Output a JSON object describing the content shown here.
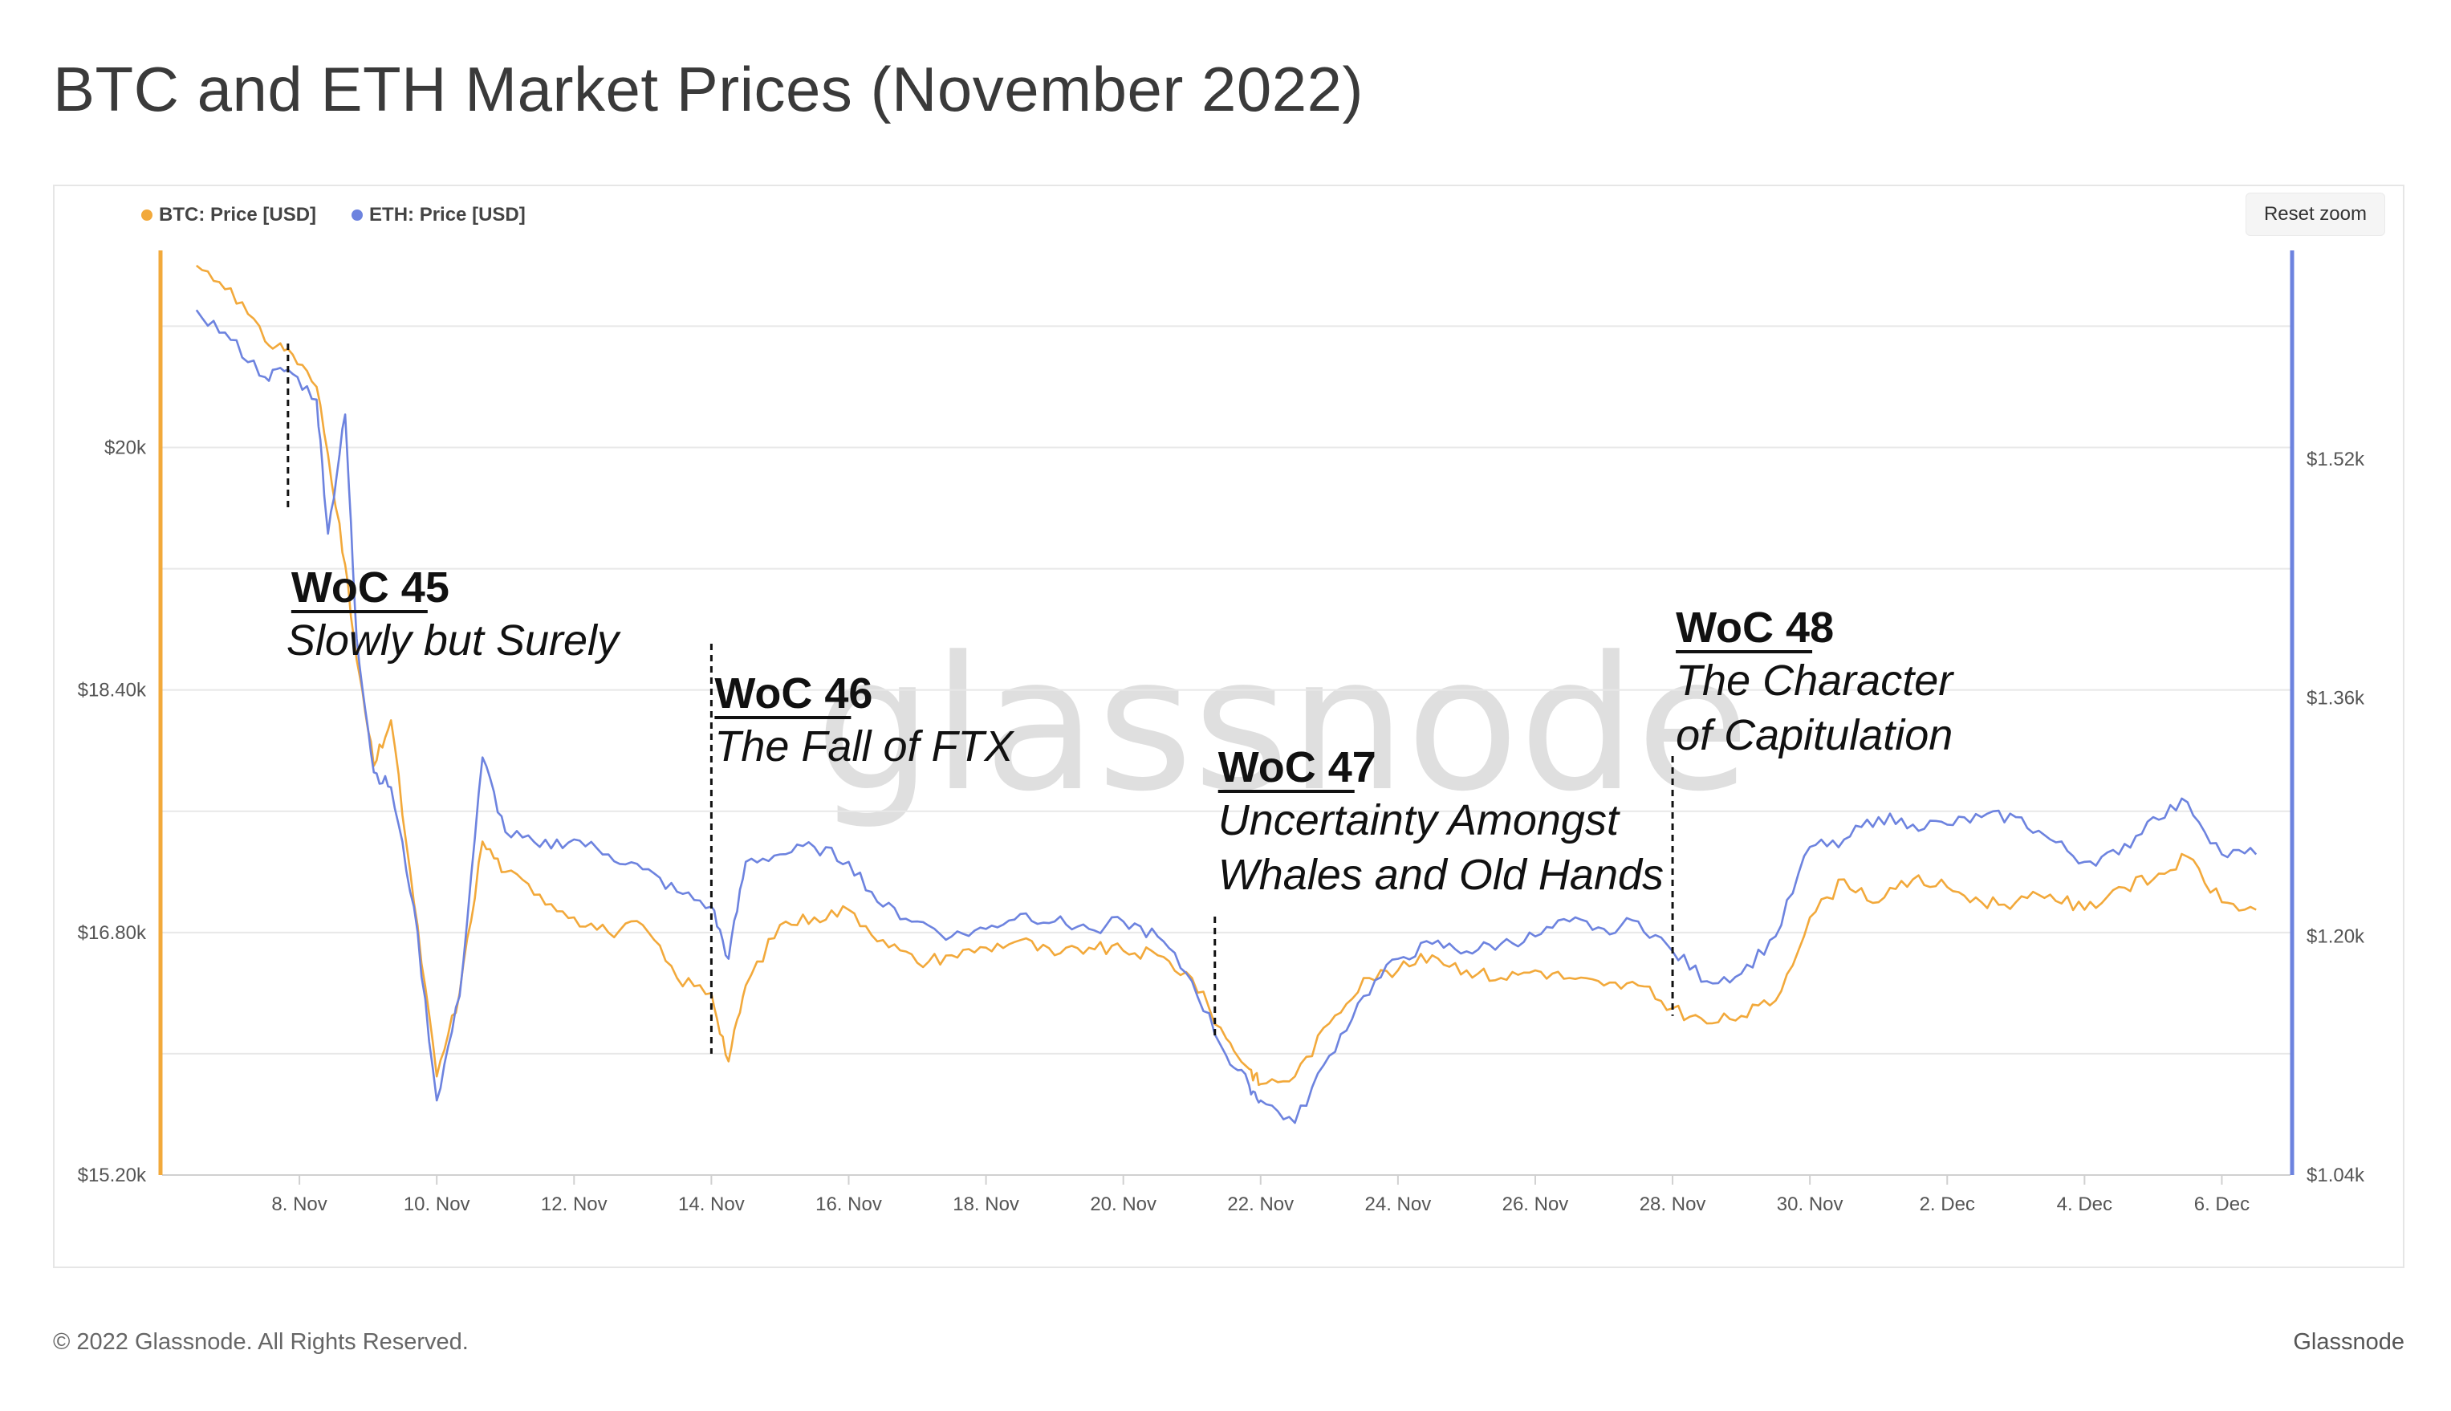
{
  "title": "BTC and ETH Market Prices (November 2022)",
  "reset_zoom_label": "Reset zoom",
  "footer": {
    "copyright": "© 2022 Glassnode. All Rights Reserved.",
    "brand": "Glassnode"
  },
  "watermark": "glassnode",
  "colors": {
    "btc": "#f2a93b",
    "eth": "#6d83df",
    "grid": "#e8e8e8",
    "axis_left": "#f2a93b",
    "axis_right": "#6d83df"
  },
  "chart_data": {
    "type": "line",
    "x_domain": [
      "2022-11-06",
      "2022-12-07"
    ],
    "grid": true,
    "legend": "top-left",
    "x_ticks": [
      {
        "date": "2022-11-08",
        "label": "8. Nov"
      },
      {
        "date": "2022-11-10",
        "label": "10. Nov"
      },
      {
        "date": "2022-11-12",
        "label": "12. Nov"
      },
      {
        "date": "2022-11-14",
        "label": "14. Nov"
      },
      {
        "date": "2022-11-16",
        "label": "16. Nov"
      },
      {
        "date": "2022-11-18",
        "label": "18. Nov"
      },
      {
        "date": "2022-11-20",
        "label": "20. Nov"
      },
      {
        "date": "2022-11-22",
        "label": "22. Nov"
      },
      {
        "date": "2022-11-24",
        "label": "24. Nov"
      },
      {
        "date": "2022-11-26",
        "label": "26. Nov"
      },
      {
        "date": "2022-11-28",
        "label": "28. Nov"
      },
      {
        "date": "2022-11-30",
        "label": "30. Nov"
      },
      {
        "date": "2022-12-02",
        "label": "2. Dec"
      },
      {
        "date": "2022-12-04",
        "label": "4. Dec"
      },
      {
        "date": "2022-12-06",
        "label": "6. Dec"
      }
    ],
    "y_left": {
      "range": [
        15200,
        21300
      ],
      "ticks": [
        {
          "value": 15200,
          "label": "$15.20k"
        },
        {
          "value": 16800,
          "label": "$16.80k"
        },
        {
          "value": 18400,
          "label": "$18.40k"
        },
        {
          "value": 20000,
          "label": "$20k"
        }
      ]
    },
    "y_right": {
      "range": [
        1040,
        1660
      ],
      "ticks": [
        {
          "value": 1040,
          "label": "$1.04k"
        },
        {
          "value": 1200,
          "label": "$1.20k"
        },
        {
          "value": 1360,
          "label": "$1.36k"
        },
        {
          "value": 1520,
          "label": "$1.52k"
        }
      ]
    },
    "series": [
      {
        "name": "BTC: Price [USD]",
        "axis": "left",
        "color": "#f2a93b",
        "points": [
          [
            "2022-11-06 12:00",
            21200
          ],
          [
            "2022-11-07 00:00",
            21050
          ],
          [
            "2022-11-07 12:00",
            20700
          ],
          [
            "2022-11-07 20:00",
            20650
          ],
          [
            "2022-11-08 06:00",
            20400
          ],
          [
            "2022-11-08 14:00",
            19500
          ],
          [
            "2022-11-08 20:00",
            18600
          ],
          [
            "2022-11-09 02:00",
            17900
          ],
          [
            "2022-11-09 08:00",
            18200
          ],
          [
            "2022-11-09 16:00",
            17000
          ],
          [
            "2022-11-10 00:00",
            15850
          ],
          [
            "2022-11-10 08:00",
            16400
          ],
          [
            "2022-11-10 16:00",
            17400
          ],
          [
            "2022-11-11 00:00",
            17200
          ],
          [
            "2022-11-11 12:00",
            17050
          ],
          [
            "2022-11-12 00:00",
            16900
          ],
          [
            "2022-11-12 12:00",
            16800
          ],
          [
            "2022-11-13 00:00",
            16850
          ],
          [
            "2022-11-13 12:00",
            16500
          ],
          [
            "2022-11-14 00:00",
            16400
          ],
          [
            "2022-11-14 06:00",
            15950
          ],
          [
            "2022-11-14 12:00",
            16450
          ],
          [
            "2022-11-15 00:00",
            16850
          ],
          [
            "2022-11-15 12:00",
            16900
          ],
          [
            "2022-11-16 00:00",
            16950
          ],
          [
            "2022-11-16 12:00",
            16750
          ],
          [
            "2022-11-17 00:00",
            16600
          ],
          [
            "2022-11-17 12:00",
            16650
          ],
          [
            "2022-11-18 00:00",
            16700
          ],
          [
            "2022-11-18 12:00",
            16750
          ],
          [
            "2022-11-19 00:00",
            16650
          ],
          [
            "2022-11-19 12:00",
            16700
          ],
          [
            "2022-11-20 00:00",
            16680
          ],
          [
            "2022-11-20 12:00",
            16650
          ],
          [
            "2022-11-21 00:00",
            16500
          ],
          [
            "2022-11-21 12:00",
            16100
          ],
          [
            "2022-11-21 20:00",
            15900
          ],
          [
            "2022-11-22 00:00",
            15800
          ],
          [
            "2022-11-22 12:00",
            15850
          ],
          [
            "2022-11-23 00:00",
            16200
          ],
          [
            "2022-11-23 12:00",
            16500
          ],
          [
            "2022-11-24 00:00",
            16550
          ],
          [
            "2022-11-24 12:00",
            16650
          ],
          [
            "2022-11-25 00:00",
            16550
          ],
          [
            "2022-11-25 12:00",
            16500
          ],
          [
            "2022-11-26 00:00",
            16550
          ],
          [
            "2022-11-26 12:00",
            16500
          ],
          [
            "2022-11-27 00:00",
            16450
          ],
          [
            "2022-11-27 12:00",
            16450
          ],
          [
            "2022-11-28 00:00",
            16300
          ],
          [
            "2022-11-28 12:00",
            16200
          ],
          [
            "2022-11-29 00:00",
            16250
          ],
          [
            "2022-11-29 12:00",
            16350
          ],
          [
            "2022-11-30 00:00",
            16900
          ],
          [
            "2022-11-30 12:00",
            17150
          ],
          [
            "2022-12-01 00:00",
            17000
          ],
          [
            "2022-12-01 12:00",
            17150
          ],
          [
            "2022-12-02 00:00",
            17100
          ],
          [
            "2022-12-02 12:00",
            17000
          ],
          [
            "2022-12-03 00:00",
            17000
          ],
          [
            "2022-12-03 12:00",
            17050
          ],
          [
            "2022-12-04 00:00",
            16950
          ],
          [
            "2022-12-04 12:00",
            17100
          ],
          [
            "2022-12-05 00:00",
            17150
          ],
          [
            "2022-12-05 12:00",
            17300
          ],
          [
            "2022-12-06 00:00",
            17000
          ],
          [
            "2022-12-06 12:00",
            16950
          ]
        ]
      },
      {
        "name": "ETH: Price [USD]",
        "axis": "right",
        "color": "#6d83df",
        "points": [
          [
            "2022-11-06 12:00",
            1620
          ],
          [
            "2022-11-07 00:00",
            1600
          ],
          [
            "2022-11-07 12:00",
            1575
          ],
          [
            "2022-11-07 20:00",
            1580
          ],
          [
            "2022-11-08 06:00",
            1560
          ],
          [
            "2022-11-08 10:00",
            1470
          ],
          [
            "2022-11-08 16:00",
            1550
          ],
          [
            "2022-11-08 20:00",
            1400
          ],
          [
            "2022-11-09 02:00",
            1310
          ],
          [
            "2022-11-09 08:00",
            1300
          ],
          [
            "2022-11-09 16:00",
            1220
          ],
          [
            "2022-11-10 00:00",
            1090
          ],
          [
            "2022-11-10 08:00",
            1160
          ],
          [
            "2022-11-10 16:00",
            1320
          ],
          [
            "2022-11-11 00:00",
            1270
          ],
          [
            "2022-11-11 12:00",
            1260
          ],
          [
            "2022-11-12 00:00",
            1265
          ],
          [
            "2022-11-12 12:00",
            1255
          ],
          [
            "2022-11-13 00:00",
            1245
          ],
          [
            "2022-11-13 12:00",
            1230
          ],
          [
            "2022-11-14 00:00",
            1220
          ],
          [
            "2022-11-14 06:00",
            1185
          ],
          [
            "2022-11-14 12:00",
            1250
          ],
          [
            "2022-11-15 00:00",
            1255
          ],
          [
            "2022-11-15 12:00",
            1260
          ],
          [
            "2022-11-16 00:00",
            1250
          ],
          [
            "2022-11-16 12:00",
            1220
          ],
          [
            "2022-11-17 00:00",
            1210
          ],
          [
            "2022-11-17 12:00",
            1200
          ],
          [
            "2022-11-18 00:00",
            1205
          ],
          [
            "2022-11-18 12:00",
            1215
          ],
          [
            "2022-11-19 00:00",
            1210
          ],
          [
            "2022-11-19 12:00",
            1205
          ],
          [
            "2022-11-20 00:00",
            1210
          ],
          [
            "2022-11-20 12:00",
            1200
          ],
          [
            "2022-11-21 00:00",
            1170
          ],
          [
            "2022-11-21 12:00",
            1120
          ],
          [
            "2022-11-21 20:00",
            1100
          ],
          [
            "2022-11-22 00:00",
            1090
          ],
          [
            "2022-11-22 12:00",
            1075
          ],
          [
            "2022-11-23 00:00",
            1120
          ],
          [
            "2022-11-23 12:00",
            1160
          ],
          [
            "2022-11-24 00:00",
            1185
          ],
          [
            "2022-11-24 12:00",
            1195
          ],
          [
            "2022-11-25 00:00",
            1190
          ],
          [
            "2022-11-25 12:00",
            1195
          ],
          [
            "2022-11-26 00:00",
            1200
          ],
          [
            "2022-11-26 12:00",
            1210
          ],
          [
            "2022-11-27 00:00",
            1205
          ],
          [
            "2022-11-27 12:00",
            1210
          ],
          [
            "2022-11-28 00:00",
            1190
          ],
          [
            "2022-11-28 12:00",
            1170
          ],
          [
            "2022-11-29 00:00",
            1175
          ],
          [
            "2022-11-29 12:00",
            1200
          ],
          [
            "2022-11-30 00:00",
            1260
          ],
          [
            "2022-11-30 12:00",
            1265
          ],
          [
            "2022-12-01 00:00",
            1280
          ],
          [
            "2022-12-01 12:00",
            1275
          ],
          [
            "2022-12-02 00:00",
            1275
          ],
          [
            "2022-12-02 12:00",
            1280
          ],
          [
            "2022-12-03 00:00",
            1280
          ],
          [
            "2022-12-03 12:00",
            1265
          ],
          [
            "2022-12-04 00:00",
            1250
          ],
          [
            "2022-12-04 12:00",
            1255
          ],
          [
            "2022-12-05 00:00",
            1280
          ],
          [
            "2022-12-05 12:00",
            1290
          ],
          [
            "2022-12-06 00:00",
            1255
          ],
          [
            "2022-12-06 12:00",
            1255
          ]
        ]
      }
    ],
    "annotations": [
      {
        "date": "2022-11-07 20:00",
        "level": 20700,
        "label": "WoC 45",
        "sublines": [
          "Slowly but Surely"
        ]
      },
      {
        "date": "2022-11-14 00:00",
        "level": 16000,
        "label": "WoC 46",
        "sublines": [
          "The Fall of FTX"
        ]
      },
      {
        "date": "2022-11-21 08:00",
        "level": 16100,
        "label": "WoC 47",
        "sublines": [
          "Uncertainty Amongst",
          "Whales and Old Hands"
        ]
      },
      {
        "date": "2022-11-28 00:00",
        "level": 16250,
        "label": "WoC 48",
        "sublines": [
          "The Character",
          "of Capitulation"
        ]
      }
    ]
  }
}
